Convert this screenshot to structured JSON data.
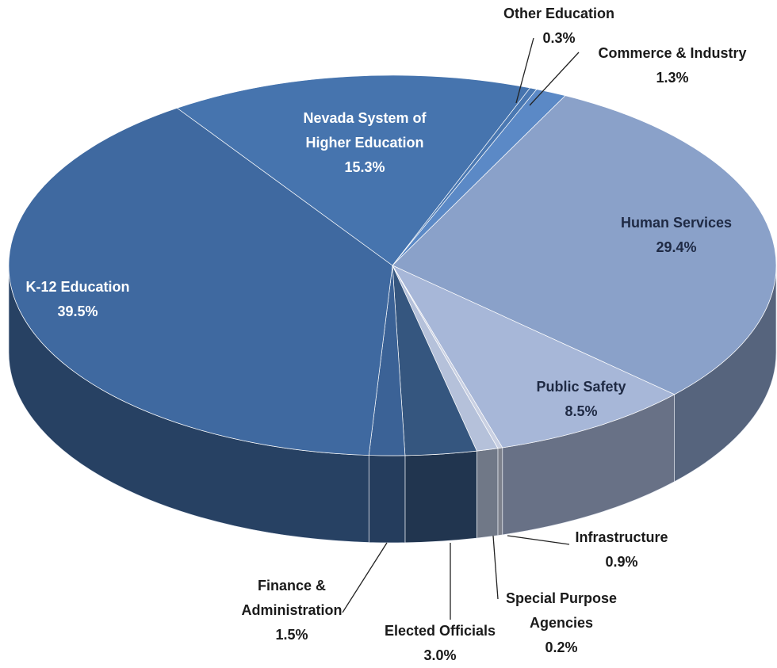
{
  "chart_data": {
    "type": "pie",
    "categories": [
      "Other Education",
      "Commerce & Industry",
      "Human Services",
      "Public Safety",
      "Special Purpose Agencies",
      "Infrastructure",
      "Elected Officials",
      "Finance & Administration",
      "K-12 Education",
      "Nevada System of Higher Education"
    ],
    "values": [
      0.3,
      1.3,
      29.4,
      8.5,
      0.2,
      0.9,
      3.0,
      1.5,
      39.5,
      15.3
    ],
    "value_labels": [
      "0.3%",
      "1.3%",
      "29.4%",
      "8.5%",
      "0.2%",
      "0.9%",
      "3.0%",
      "1.5%",
      "39.5%",
      "15.3%"
    ],
    "colors": [
      "#4a78b2",
      "#5b89c6",
      "#8aa1c9",
      "#a7b7d8",
      "#c9d0e2",
      "#b5c1da",
      "#35567f",
      "#3b6296",
      "#3f69a0",
      "#4674ae"
    ]
  }
}
